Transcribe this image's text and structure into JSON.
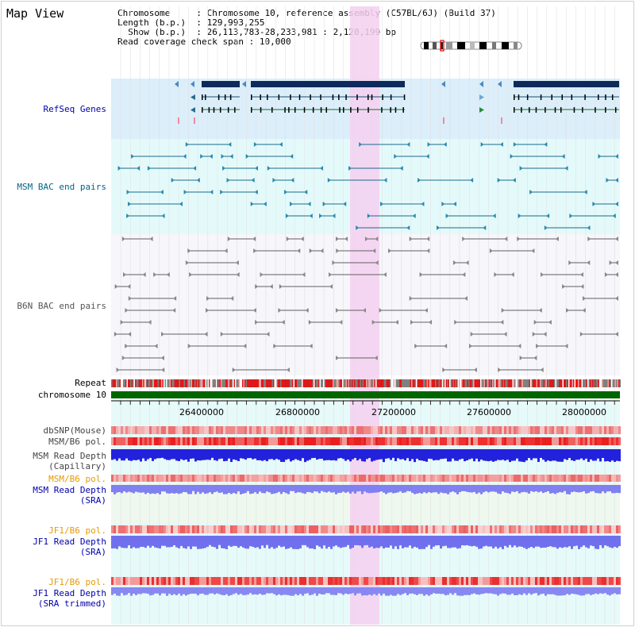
{
  "title": "Map View",
  "info": {
    "chromosome_key": "Chromosome",
    "chromosome_val": "Chromosome 10, reference assembly (C57BL/6J) (Build 37)",
    "length_key": "Length (b.p.)",
    "length_val": "129,993,255",
    "show_key": "Show (b.p.)",
    "show_val": "26,113,783-28,233,981 : 2,120,199 bp",
    "read_key": "Read coverage check span",
    "read_val": "10,000"
  },
  "tracks": {
    "refseq": "RefSeq Genes",
    "msm_bac": "MSM BAC end pairs",
    "b6n_bac": "B6N BAC end pairs",
    "repeat": "Repeat",
    "chromosome": "chromosome 10",
    "dbsnp": "dbSNP(Mouse)",
    "msm_b6_pol": "MSM/B6 pol.",
    "msm_depth_cap_1": "MSM Read Depth",
    "msm_depth_cap_2": "(Capillary)",
    "msm_b6_pol_2": "MSM/B6 pol.",
    "msm_depth_sra_1": "MSM Read Depth",
    "msm_depth_sra_2": "(SRA)",
    "jf1_b6_pol": "JF1/B6 pol.",
    "jf1_depth_sra_1": "JF1 Read Depth",
    "jf1_depth_sra_2": "(SRA)",
    "jf1_b6_pol_2": "JF1/B6 pol.",
    "jf1_depth_trim_1": "JF1 Read Depth",
    "jf1_depth_trim_2": "(SRA trimmed)"
  },
  "axis": {
    "ticks": [
      "26400000",
      "26800000",
      "27200000",
      "27600000",
      "28000000"
    ]
  },
  "colors": {
    "refseq_bg": "#dbeefa",
    "msm_bg": "#e4fafa",
    "b6n_bg": "#f6f6fb",
    "highlight": "#f5d0f0",
    "gene": "#0d2a5a",
    "msm_line": "#1a6a8a",
    "b6n_line": "#606060",
    "chromosome": "#006600",
    "label_blue": "#0000aa",
    "label_teal": "#006688",
    "label_orange": "#e89a00",
    "label_gray": "#444444"
  }
}
